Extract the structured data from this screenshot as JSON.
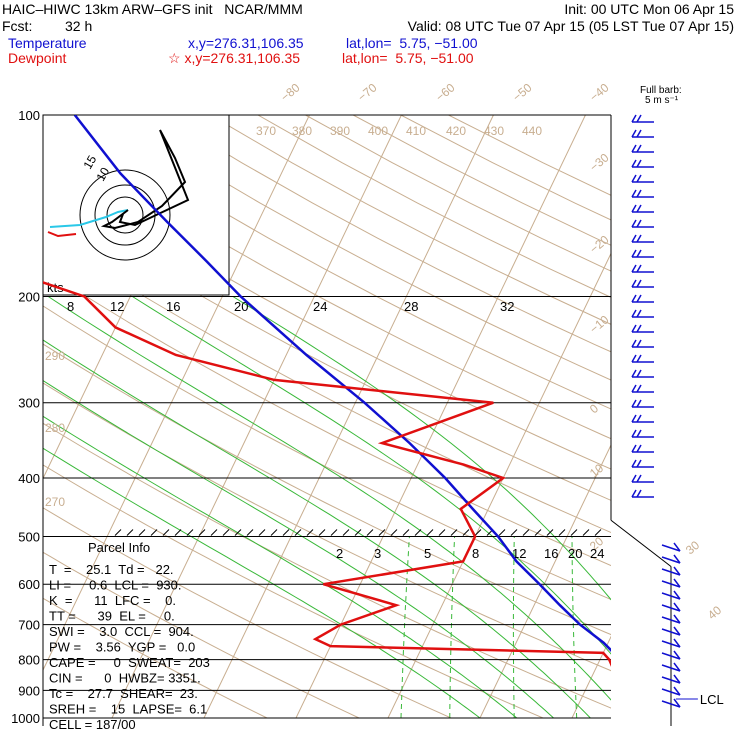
{
  "header": {
    "title": "HAIC–HIWC 13km ARW–GFS init   NCAR/MMM",
    "init": "Init: 00 UTC Mon 06 Apr 15",
    "fcst_label": "Fcst:",
    "fcst_value": "32 h",
    "valid": "Valid: 08 UTC Tue 07 Apr 15 (05 LST Tue 07 Apr 15)",
    "temp_label": "Temperature",
    "temp_xy": "x,y=276.31,106.35",
    "temp_latlon": "lat,lon=  5.75, −51.00",
    "dew_label": "Dewpoint",
    "dew_xy": "☆ x,y=276.31,106.35",
    "dew_latlon": "lat,lon=  5.75, −51.00"
  },
  "barb_key": {
    "line1": "Full barb:",
    "line2": "5 m s⁻¹"
  },
  "hodograph": {
    "units": "kts",
    "ring_labels": [
      "15",
      "10"
    ]
  },
  "chart_data": {
    "type": "line",
    "title": "HAIC–HIWC 13km ARW–GFS init",
    "xlabel": "",
    "ylabel": "",
    "pressure_levels": [
      100,
      200,
      300,
      400,
      500,
      600,
      700,
      800,
      900,
      1000
    ],
    "pressure_tick_labels": [
      "100",
      "200",
      "300",
      "400",
      "500",
      "600",
      "700",
      "800",
      "900",
      "1000"
    ],
    "isotherm_labels_top": [
      "−80",
      "−70",
      "−60",
      "−50",
      "−40"
    ],
    "isotherm_labels_right": [
      "−30",
      "−20",
      "−10",
      "0",
      "10",
      "20",
      "30",
      "40"
    ],
    "theta_labels_top": [
      "370",
      "380",
      "390",
      "400",
      "410",
      "420",
      "430",
      "440"
    ],
    "theta_labels_left": [
      "290",
      "280",
      "270"
    ],
    "theta_e_labels": [
      "8",
      "12",
      "16",
      "20",
      "24",
      "28",
      "32"
    ],
    "mixing_ratio_labels": [
      "2",
      "3",
      "5",
      "8",
      "12",
      "16",
      "20",
      "24"
    ],
    "lcl_label": "LCL",
    "series": [
      {
        "name": "Temperature",
        "color": "#1010d0",
        "pressure": [
          1000,
          975,
          950,
          925,
          900,
          850,
          800,
          750,
          700,
          650,
          600,
          550,
          500,
          450,
          400,
          350,
          300,
          250,
          200,
          175,
          150,
          125,
          100
        ],
        "temperature_c": [
          25.1,
          23.0,
          21.0,
          19.6,
          17.8,
          15.2,
          12.2,
          9.5,
          6.0,
          2.8,
          -0.5,
          -4.2,
          -7.5,
          -11.7,
          -16.3,
          -22.0,
          -29.0,
          -37.8,
          -48.0,
          -53.5,
          -60.0,
          -67.5,
          -75.5
        ]
      },
      {
        "name": "Dewpoint",
        "color": "#e01010",
        "pressure": [
          1000,
          975,
          950,
          925,
          900,
          850,
          825,
          800,
          780,
          760,
          740,
          700,
          650,
          600,
          550,
          500,
          450,
          400,
          380,
          350,
          300,
          275,
          250,
          225,
          200,
          175,
          150,
          125,
          100
        ],
        "temperature_c": [
          22.0,
          20.0,
          18.5,
          17.0,
          16.0,
          12.5,
          11.8,
          11.0,
          10.0,
          -20.0,
          -22.0,
          -20.0,
          -15.0,
          -24.0,
          -10.0,
          -10.0,
          -13.0,
          -10.0,
          -15.0,
          -25.0,
          -15.0,
          -40.0,
          -52.0,
          -60.0,
          -65.0,
          -78.0,
          -90.0,
          -94.0,
          -90.0
        ]
      }
    ]
  },
  "parcel_info": {
    "title": "Parcel Info",
    "rows": [
      "T  =    25.1  Td =   22.",
      "LI =     0.6  LCL =  930.",
      "K  =      11  LFC =    0.",
      "TT =      39  EL =     0.",
      "SWI =    3.0  CCL =  904.",
      "PW =    3.56  YGP =   0.0",
      "CAPE =     0  SWEAT=  203",
      "CIN =      0  HWBZ= 3351.",
      "Tc =    27.7  SHEAR=  23.",
      "SREH =    15  LAPSE=  6.1",
      "CELL = 187/00"
    ]
  }
}
